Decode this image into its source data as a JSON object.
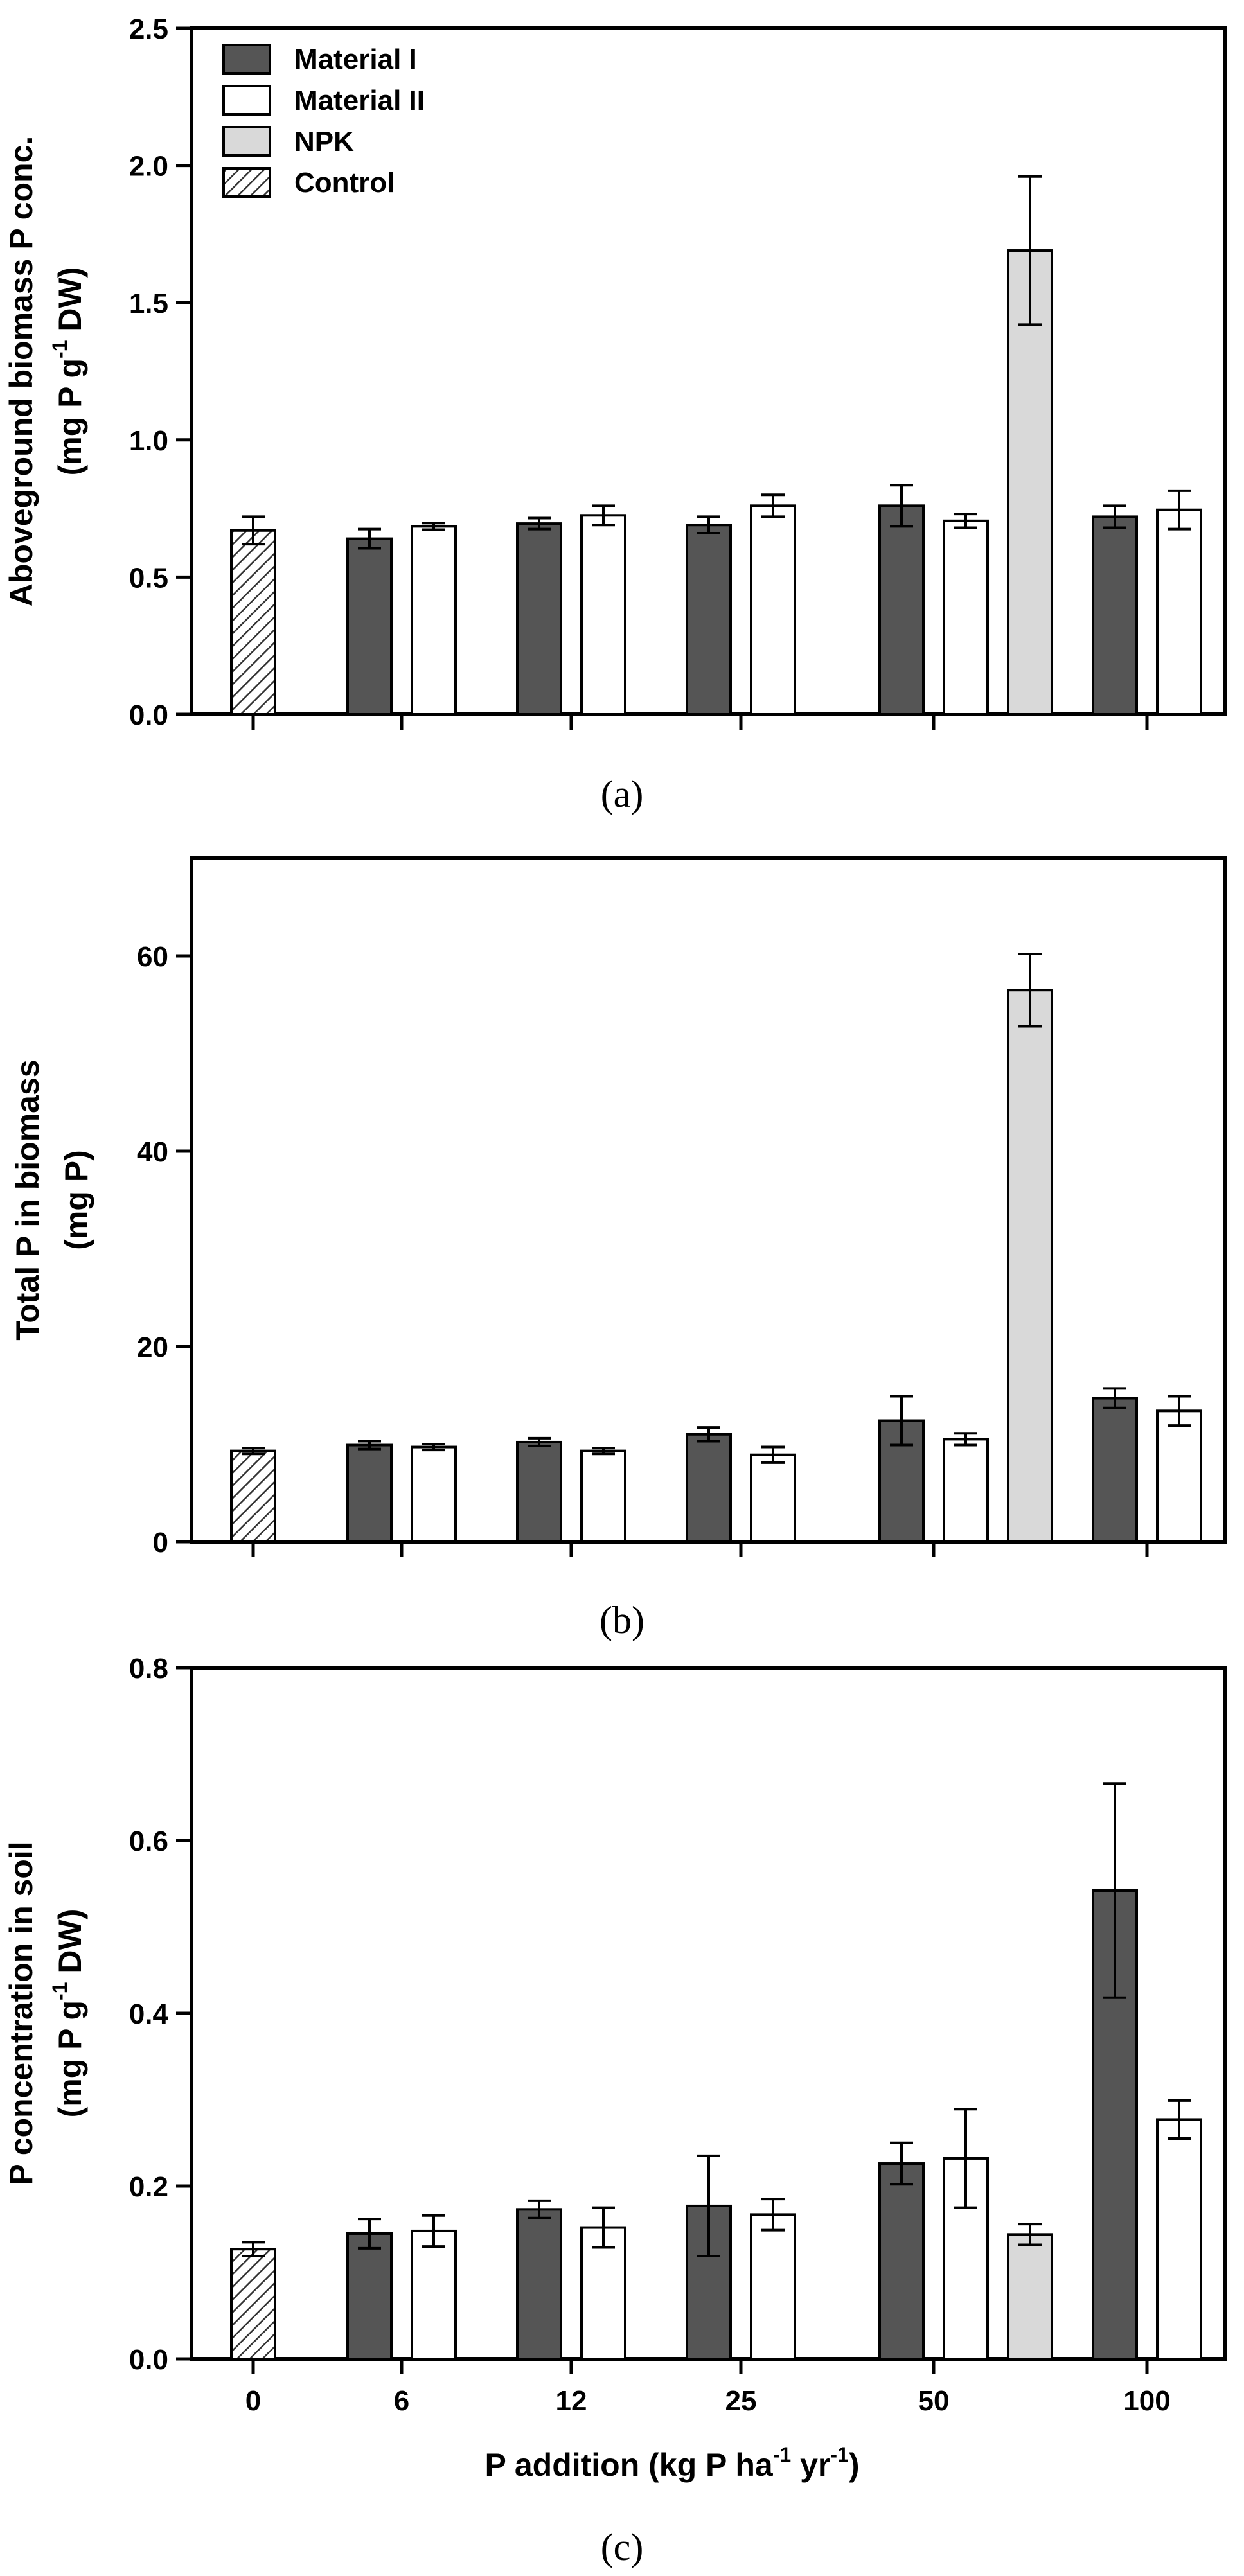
{
  "colors": {
    "material_i": "#555555",
    "material_ii": "#ffffff",
    "npk": "#d9d9d9",
    "control_hatch": "#333333",
    "axis": "#000000"
  },
  "legend": {
    "items": [
      {
        "label": "Material I",
        "style": "material_i"
      },
      {
        "label": "Material II",
        "style": "material_ii"
      },
      {
        "label": "NPK",
        "style": "npk"
      },
      {
        "label": "Control",
        "style": "control_hatch"
      }
    ]
  },
  "x_axis": {
    "title_prefix": "P addition (kg P ha",
    "title_sup1": "-1",
    "title_mid": " yr",
    "title_sup2": "-1",
    "title_suffix": ")",
    "groups": [
      "0",
      "6",
      "12",
      "25",
      "50",
      "100"
    ]
  },
  "chart_data": [
    {
      "type": "bar",
      "panel": "a",
      "caption": "(a)",
      "ylabel_line1": "Aboveground biomass P conc.",
      "ylabel_line2_prefix": "(mg P g",
      "ylabel_line2_sup": "-1",
      "ylabel_line2_suffix": " DW)",
      "ylim": [
        0,
        2.5
      ],
      "yticks": [
        0.0,
        0.5,
        1.0,
        1.5,
        2.0,
        2.5
      ],
      "ytick_decimals": 1,
      "categories": [
        "0",
        "6",
        "12",
        "25",
        "50",
        "100"
      ],
      "bars": [
        {
          "group": "0",
          "series": "Control",
          "value": 0.67,
          "err": 0.05
        },
        {
          "group": "6",
          "series": "Material I",
          "value": 0.64,
          "err": 0.035
        },
        {
          "group": "6",
          "series": "Material II",
          "value": 0.685,
          "err": 0.012
        },
        {
          "group": "12",
          "series": "Material I",
          "value": 0.695,
          "err": 0.02
        },
        {
          "group": "12",
          "series": "Material II",
          "value": 0.725,
          "err": 0.035
        },
        {
          "group": "25",
          "series": "Material I",
          "value": 0.69,
          "err": 0.03
        },
        {
          "group": "25",
          "series": "Material II",
          "value": 0.76,
          "err": 0.04
        },
        {
          "group": "50",
          "series": "Material I",
          "value": 0.76,
          "err": 0.075
        },
        {
          "group": "50",
          "series": "Material II",
          "value": 0.705,
          "err": 0.025
        },
        {
          "group": "50",
          "series": "NPK",
          "value": 1.69,
          "err": 0.27
        },
        {
          "group": "100",
          "series": "Material I",
          "value": 0.72,
          "err": 0.04
        },
        {
          "group": "100",
          "series": "Material II",
          "value": 0.745,
          "err": 0.07
        }
      ]
    },
    {
      "type": "bar",
      "panel": "b",
      "caption": "(b)",
      "ylabel_line1": "Total P in biomass",
      "ylabel_line2_prefix": "(mg P)",
      "ylabel_line2_sup": "",
      "ylabel_line2_suffix": "",
      "ylim": [
        0,
        70
      ],
      "yticks": [
        0,
        20,
        40,
        60
      ],
      "ytick_decimals": 0,
      "categories": [
        "0",
        "6",
        "12",
        "25",
        "50",
        "100"
      ],
      "bars": [
        {
          "group": "0",
          "series": "Control",
          "value": 9.3,
          "err": 0.3
        },
        {
          "group": "6",
          "series": "Material I",
          "value": 9.9,
          "err": 0.4
        },
        {
          "group": "6",
          "series": "Material II",
          "value": 9.7,
          "err": 0.3
        },
        {
          "group": "12",
          "series": "Material I",
          "value": 10.2,
          "err": 0.4
        },
        {
          "group": "12",
          "series": "Material II",
          "value": 9.3,
          "err": 0.3
        },
        {
          "group": "25",
          "series": "Material I",
          "value": 11.0,
          "err": 0.7
        },
        {
          "group": "25",
          "series": "Material II",
          "value": 8.9,
          "err": 0.8
        },
        {
          "group": "50",
          "series": "Material I",
          "value": 12.4,
          "err": 2.5
        },
        {
          "group": "50",
          "series": "Material II",
          "value": 10.5,
          "err": 0.6
        },
        {
          "group": "50",
          "series": "NPK",
          "value": 56.5,
          "err": 3.7
        },
        {
          "group": "100",
          "series": "Material I",
          "value": 14.7,
          "err": 1.0
        },
        {
          "group": "100",
          "series": "Material II",
          "value": 13.4,
          "err": 1.5
        }
      ]
    },
    {
      "type": "bar",
      "panel": "c",
      "caption": "(c)",
      "ylabel_line1": "P concentration in soil",
      "ylabel_line2_prefix": "(mg P g",
      "ylabel_line2_sup": "-1",
      "ylabel_line2_suffix": " DW)",
      "ylim": [
        0,
        0.8
      ],
      "yticks": [
        0.0,
        0.2,
        0.4,
        0.6,
        0.8
      ],
      "ytick_decimals": 1,
      "categories": [
        "0",
        "6",
        "12",
        "25",
        "50",
        "100"
      ],
      "show_tick_labels": true,
      "bars": [
        {
          "group": "0",
          "series": "Control",
          "value": 0.127,
          "err": 0.008
        },
        {
          "group": "6",
          "series": "Material I",
          "value": 0.145,
          "err": 0.017
        },
        {
          "group": "6",
          "series": "Material II",
          "value": 0.148,
          "err": 0.018
        },
        {
          "group": "12",
          "series": "Material I",
          "value": 0.173,
          "err": 0.01
        },
        {
          "group": "12",
          "series": "Material II",
          "value": 0.152,
          "err": 0.023
        },
        {
          "group": "25",
          "series": "Material I",
          "value": 0.177,
          "err": 0.058
        },
        {
          "group": "25",
          "series": "Material II",
          "value": 0.167,
          "err": 0.018
        },
        {
          "group": "50",
          "series": "Material I",
          "value": 0.226,
          "err": 0.024
        },
        {
          "group": "50",
          "series": "Material II",
          "value": 0.232,
          "err": 0.057
        },
        {
          "group": "50",
          "series": "NPK",
          "value": 0.144,
          "err": 0.012
        },
        {
          "group": "100",
          "series": "Material I",
          "value": 0.542,
          "err": 0.124
        },
        {
          "group": "100",
          "series": "Material II",
          "value": 0.277,
          "err": 0.022
        }
      ]
    }
  ]
}
